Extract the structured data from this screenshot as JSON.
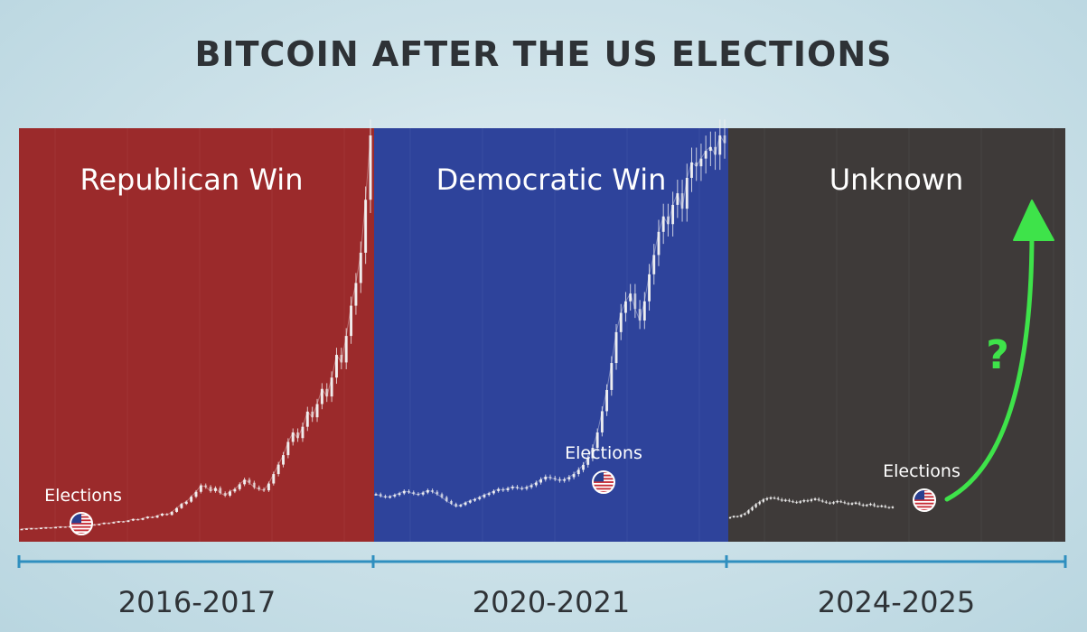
{
  "title": "BITCOIN AFTER THE US ELECTIONS",
  "colors": {
    "republican": "#9b2a2b",
    "democratic": "#2e439b",
    "unknown": "#3e3a39",
    "candle": "#f2f2f2",
    "timeline": "#2f8fbf",
    "arrow": "#3ee34a",
    "text_dark": "#2e3236"
  },
  "chart_data": {
    "type": "candlestick",
    "panels": [
      {
        "title": "Republican Win",
        "period": "2016-2017",
        "event_label": "Elections",
        "event_icon": "us-flag-icon",
        "color": "#9b2a2b",
        "values": [
          1.0,
          1.1,
          1.2,
          1.1,
          1.3,
          1.4,
          1.3,
          1.5,
          1.6,
          1.5,
          1.7,
          1.8,
          1.7,
          2.0,
          2.2,
          2.1,
          2.3,
          2.6,
          2.5,
          2.8,
          3.0,
          2.9,
          3.2,
          3.6,
          3.4,
          3.8,
          4.2,
          4.0,
          4.5,
          5.0,
          4.7,
          5.5,
          6.5,
          7.6,
          8.2,
          9.5,
          10.8,
          12.5,
          12.1,
          11.0,
          11.8,
          10.5,
          9.8,
          10.9,
          11.5,
          12.8,
          14.0,
          13.2,
          12.0,
          11.5,
          11.2,
          13.0,
          15.5,
          18.0,
          20.5,
          24.0,
          26.5,
          25.0,
          28.0,
          32.0,
          30.5,
          34.0,
          38.0,
          36.0,
          41.0,
          47.0,
          45.0,
          52.0,
          60.0,
          66.0,
          74.0,
          88.0,
          105.0
        ]
      },
      {
        "title": "Democratic Win",
        "period": "2020-2021",
        "event_label": "Elections",
        "event_icon": "us-flag-icon",
        "color": "#2e439b",
        "values": [
          10.0,
          9.5,
          9.2,
          9.4,
          9.8,
          10.2,
          10.8,
          10.5,
          10.1,
          9.9,
          10.4,
          11.0,
          10.6,
          10.0,
          9.2,
          8.2,
          7.5,
          6.8,
          7.2,
          7.8,
          8.3,
          8.7,
          9.2,
          9.8,
          10.2,
          10.8,
          11.3,
          11.0,
          11.5,
          11.9,
          11.6,
          11.4,
          11.8,
          12.3,
          13.0,
          13.8,
          14.5,
          14.2,
          13.9,
          13.5,
          13.8,
          14.4,
          15.2,
          16.3,
          17.6,
          19.3,
          22.0,
          26.0,
          31.5,
          37.0,
          44.0,
          52.0,
          57.0,
          60.0,
          62.0,
          58.0,
          55.0,
          60.0,
          67.0,
          72.0,
          78.0,
          82.0,
          80.0,
          85.0,
          88.0,
          84.0,
          92.0,
          96.0,
          95.0,
          97.0,
          99.0,
          100.0,
          98.0,
          103.0,
          101.0
        ]
      },
      {
        "title": "Unknown",
        "period": "2024-2025",
        "event_label": "Elections",
        "event_icon": "us-flag-icon",
        "color": "#3e3a39",
        "values": [
          4.0,
          4.3,
          4.1,
          4.6,
          5.0,
          5.8,
          6.6,
          7.4,
          8.0,
          8.6,
          8.9,
          9.1,
          9.0,
          8.7,
          8.3,
          8.5,
          8.2,
          8.0,
          7.8,
          8.1,
          8.4,
          8.2,
          8.6,
          8.8,
          8.4,
          8.1,
          7.8,
          7.6,
          7.9,
          8.2,
          8.0,
          7.7,
          7.4,
          7.6,
          7.8,
          7.3,
          7.0,
          7.2,
          7.5,
          6.9,
          6.8,
          7.0,
          6.6,
          6.5,
          6.7
        ]
      }
    ],
    "projection": {
      "direction": "up",
      "label": "?"
    }
  }
}
